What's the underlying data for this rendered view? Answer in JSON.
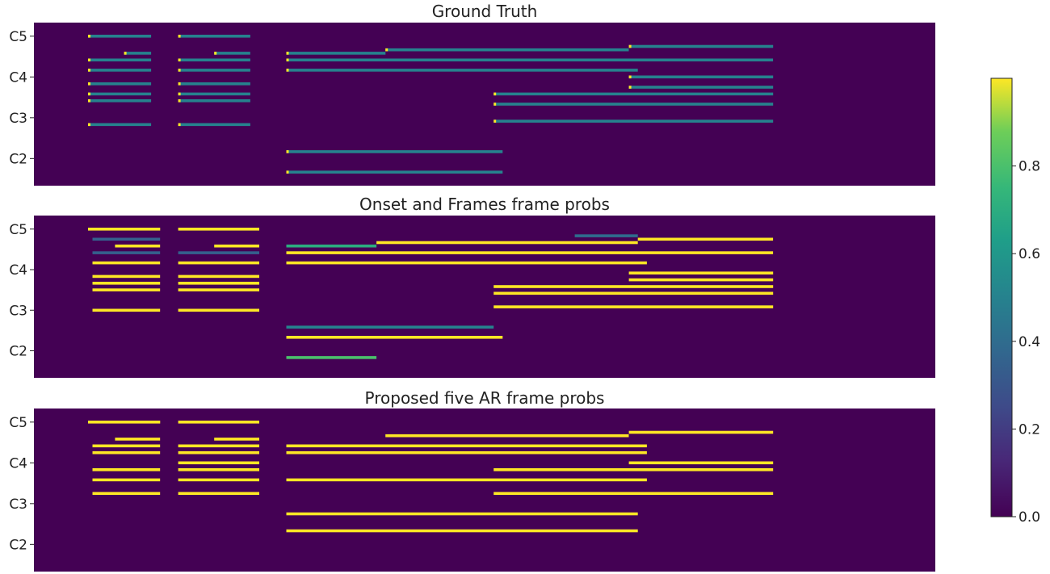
{
  "chart_data": [
    {
      "type": "heatmap",
      "title": "Ground Truth",
      "y_ticks": [
        "C5",
        "C4",
        "C3",
        "C2"
      ],
      "notes": [
        {
          "pitch": 72,
          "start": 0.06,
          "end": 0.13,
          "value": 0.5,
          "onset": true
        },
        {
          "pitch": 72,
          "start": 0.16,
          "end": 0.24,
          "value": 0.5,
          "onset": true
        },
        {
          "pitch": 67,
          "start": 0.1,
          "end": 0.13,
          "value": 0.5,
          "onset": true
        },
        {
          "pitch": 67,
          "start": 0.2,
          "end": 0.24,
          "value": 0.5,
          "onset": true
        },
        {
          "pitch": 65,
          "start": 0.06,
          "end": 0.13,
          "value": 0.5,
          "onset": true
        },
        {
          "pitch": 65,
          "start": 0.16,
          "end": 0.24,
          "value": 0.5,
          "onset": true
        },
        {
          "pitch": 62,
          "start": 0.06,
          "end": 0.13,
          "value": 0.5,
          "onset": true
        },
        {
          "pitch": 62,
          "start": 0.16,
          "end": 0.24,
          "value": 0.5,
          "onset": true
        },
        {
          "pitch": 58,
          "start": 0.06,
          "end": 0.13,
          "value": 0.5,
          "onset": true
        },
        {
          "pitch": 58,
          "start": 0.16,
          "end": 0.24,
          "value": 0.5,
          "onset": true
        },
        {
          "pitch": 55,
          "start": 0.06,
          "end": 0.13,
          "value": 0.5,
          "onset": true
        },
        {
          "pitch": 55,
          "start": 0.16,
          "end": 0.24,
          "value": 0.5,
          "onset": true
        },
        {
          "pitch": 53,
          "start": 0.06,
          "end": 0.13,
          "value": 0.5,
          "onset": true
        },
        {
          "pitch": 53,
          "start": 0.16,
          "end": 0.24,
          "value": 0.5,
          "onset": true
        },
        {
          "pitch": 46,
          "start": 0.06,
          "end": 0.13,
          "value": 0.5,
          "onset": true
        },
        {
          "pitch": 46,
          "start": 0.16,
          "end": 0.24,
          "value": 0.5,
          "onset": true
        },
        {
          "pitch": 67,
          "start": 0.28,
          "end": 0.39,
          "value": 0.5,
          "onset": true
        },
        {
          "pitch": 68,
          "start": 0.39,
          "end": 0.66,
          "value": 0.5,
          "onset": true
        },
        {
          "pitch": 69,
          "start": 0.66,
          "end": 0.82,
          "value": 0.5,
          "onset": true
        },
        {
          "pitch": 65,
          "start": 0.28,
          "end": 0.82,
          "value": 0.5,
          "onset": true
        },
        {
          "pitch": 62,
          "start": 0.28,
          "end": 0.67,
          "value": 0.5,
          "onset": true
        },
        {
          "pitch": 60,
          "start": 0.66,
          "end": 0.82,
          "value": 0.5,
          "onset": true
        },
        {
          "pitch": 57,
          "start": 0.66,
          "end": 0.82,
          "value": 0.5,
          "onset": true
        },
        {
          "pitch": 55,
          "start": 0.51,
          "end": 0.82,
          "value": 0.5,
          "onset": true
        },
        {
          "pitch": 52,
          "start": 0.51,
          "end": 0.82,
          "value": 0.5,
          "onset": true
        },
        {
          "pitch": 47,
          "start": 0.51,
          "end": 0.82,
          "value": 0.5,
          "onset": true
        },
        {
          "pitch": 38,
          "start": 0.28,
          "end": 0.52,
          "value": 0.5,
          "onset": true
        },
        {
          "pitch": 32,
          "start": 0.28,
          "end": 0.52,
          "value": 0.5,
          "onset": true
        }
      ]
    },
    {
      "type": "heatmap",
      "title": "Onset and Frames frame probs",
      "y_ticks": [
        "C5",
        "C4",
        "C3",
        "C2"
      ],
      "notes": [
        {
          "pitch": 72,
          "start": 0.06,
          "end": 0.14,
          "value": 1.0
        },
        {
          "pitch": 72,
          "start": 0.16,
          "end": 0.25,
          "value": 1.0
        },
        {
          "pitch": 69,
          "start": 0.065,
          "end": 0.14,
          "value": 0.35
        },
        {
          "pitch": 67,
          "start": 0.09,
          "end": 0.14,
          "value": 1.0
        },
        {
          "pitch": 67,
          "start": 0.2,
          "end": 0.25,
          "value": 1.0
        },
        {
          "pitch": 65,
          "start": 0.065,
          "end": 0.14,
          "value": 0.35
        },
        {
          "pitch": 65,
          "start": 0.16,
          "end": 0.25,
          "value": 0.35
        },
        {
          "pitch": 62,
          "start": 0.065,
          "end": 0.14,
          "value": 1.0
        },
        {
          "pitch": 62,
          "start": 0.16,
          "end": 0.25,
          "value": 1.0
        },
        {
          "pitch": 58,
          "start": 0.065,
          "end": 0.14,
          "value": 1.0
        },
        {
          "pitch": 58,
          "start": 0.16,
          "end": 0.25,
          "value": 1.0
        },
        {
          "pitch": 56,
          "start": 0.065,
          "end": 0.14,
          "value": 1.0
        },
        {
          "pitch": 56,
          "start": 0.16,
          "end": 0.25,
          "value": 1.0
        },
        {
          "pitch": 54,
          "start": 0.065,
          "end": 0.14,
          "value": 1.0
        },
        {
          "pitch": 54,
          "start": 0.16,
          "end": 0.25,
          "value": 1.0
        },
        {
          "pitch": 48,
          "start": 0.065,
          "end": 0.14,
          "value": 1.0
        },
        {
          "pitch": 48,
          "start": 0.16,
          "end": 0.25,
          "value": 1.0
        },
        {
          "pitch": 67,
          "start": 0.28,
          "end": 0.38,
          "value": 0.7
        },
        {
          "pitch": 68,
          "start": 0.38,
          "end": 0.67,
          "value": 1.0
        },
        {
          "pitch": 69,
          "start": 0.67,
          "end": 0.82,
          "value": 1.0
        },
        {
          "pitch": 70,
          "start": 0.6,
          "end": 0.67,
          "value": 0.4
        },
        {
          "pitch": 65,
          "start": 0.28,
          "end": 0.82,
          "value": 1.0
        },
        {
          "pitch": 62,
          "start": 0.28,
          "end": 0.68,
          "value": 1.0
        },
        {
          "pitch": 59,
          "start": 0.66,
          "end": 0.82,
          "value": 1.0
        },
        {
          "pitch": 57,
          "start": 0.66,
          "end": 0.82,
          "value": 1.0
        },
        {
          "pitch": 55,
          "start": 0.51,
          "end": 0.82,
          "value": 1.0
        },
        {
          "pitch": 53,
          "start": 0.51,
          "end": 0.82,
          "value": 1.0
        },
        {
          "pitch": 49,
          "start": 0.51,
          "end": 0.82,
          "value": 1.0
        },
        {
          "pitch": 43,
          "start": 0.28,
          "end": 0.51,
          "value": 0.5
        },
        {
          "pitch": 40,
          "start": 0.28,
          "end": 0.52,
          "value": 1.0
        },
        {
          "pitch": 34,
          "start": 0.28,
          "end": 0.38,
          "value": 0.8
        }
      ]
    },
    {
      "type": "heatmap",
      "title": "Proposed five AR frame probs",
      "y_ticks": [
        "C5",
        "C4",
        "C3",
        "C2"
      ],
      "notes": [
        {
          "pitch": 72,
          "start": 0.06,
          "end": 0.14,
          "value": 1.0
        },
        {
          "pitch": 72,
          "start": 0.16,
          "end": 0.25,
          "value": 1.0
        },
        {
          "pitch": 67,
          "start": 0.09,
          "end": 0.14,
          "value": 1.0
        },
        {
          "pitch": 67,
          "start": 0.2,
          "end": 0.25,
          "value": 1.0
        },
        {
          "pitch": 68,
          "start": 0.39,
          "end": 0.66,
          "value": 1.0
        },
        {
          "pitch": 69,
          "start": 0.66,
          "end": 0.82,
          "value": 1.0
        },
        {
          "pitch": 65,
          "start": 0.065,
          "end": 0.14,
          "value": 1.0
        },
        {
          "pitch": 65,
          "start": 0.16,
          "end": 0.25,
          "value": 1.0
        },
        {
          "pitch": 65,
          "start": 0.28,
          "end": 0.68,
          "value": 1.0
        },
        {
          "pitch": 63,
          "start": 0.065,
          "end": 0.14,
          "value": 1.0
        },
        {
          "pitch": 63,
          "start": 0.16,
          "end": 0.25,
          "value": 1.0
        },
        {
          "pitch": 63,
          "start": 0.28,
          "end": 0.68,
          "value": 1.0
        },
        {
          "pitch": 60,
          "start": 0.16,
          "end": 0.25,
          "value": 1.0
        },
        {
          "pitch": 60,
          "start": 0.66,
          "end": 0.82,
          "value": 1.0
        },
        {
          "pitch": 58,
          "start": 0.065,
          "end": 0.14,
          "value": 1.0
        },
        {
          "pitch": 58,
          "start": 0.16,
          "end": 0.25,
          "value": 1.0
        },
        {
          "pitch": 58,
          "start": 0.51,
          "end": 0.82,
          "value": 1.0
        },
        {
          "pitch": 55,
          "start": 0.065,
          "end": 0.14,
          "value": 1.0
        },
        {
          "pitch": 55,
          "start": 0.16,
          "end": 0.25,
          "value": 1.0
        },
        {
          "pitch": 55,
          "start": 0.28,
          "end": 0.68,
          "value": 1.0
        },
        {
          "pitch": 51,
          "start": 0.065,
          "end": 0.14,
          "value": 1.0
        },
        {
          "pitch": 51,
          "start": 0.16,
          "end": 0.25,
          "value": 1.0
        },
        {
          "pitch": 51,
          "start": 0.51,
          "end": 0.82,
          "value": 1.0
        },
        {
          "pitch": 45,
          "start": 0.28,
          "end": 0.67,
          "value": 1.0
        },
        {
          "pitch": 40,
          "start": 0.28,
          "end": 0.67,
          "value": 1.0
        }
      ]
    }
  ],
  "colorbar": {
    "ticks": [
      "0.0",
      "0.2",
      "0.4",
      "0.6",
      "0.8"
    ],
    "range": [
      0,
      1
    ]
  },
  "colors": {
    "background": "#440154",
    "mid": "#21918c",
    "high": "#fde725"
  }
}
